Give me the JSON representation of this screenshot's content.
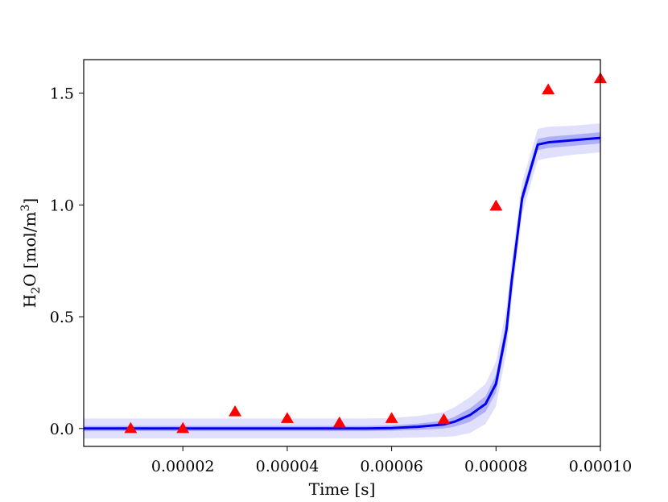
{
  "chart_data": {
    "type": "line",
    "title": "",
    "xlabel": "Time [s]",
    "ylabel": "H2O [mol/m3]",
    "ylabel_parts": {
      "species_main": "H",
      "species_sub": "2",
      "species_tail": "O",
      "unit_main": "[mol/m",
      "unit_sup": "3",
      "unit_tail": "]"
    },
    "xlim": [
      1e-06,
      0.0001
    ],
    "ylim": [
      -0.08,
      1.65
    ],
    "x_ticks": [
      2e-05,
      4e-05,
      6e-05,
      8e-05,
      0.0001
    ],
    "x_tick_labels": [
      "0.00002",
      "0.00004",
      "0.00006",
      "0.00008",
      "0.00010"
    ],
    "y_ticks": [
      0.0,
      0.5,
      1.0,
      1.5
    ],
    "y_tick_labels": [
      "0.0",
      "0.5",
      "1.0",
      "1.5"
    ],
    "grid": false,
    "series": [
      {
        "kind": "line-with-bands",
        "color": "#0000ee",
        "x": [
          1e-06,
          5e-06,
          1e-05,
          1.5e-05,
          2e-05,
          2.5e-05,
          3e-05,
          3.5e-05,
          4e-05,
          4.5e-05,
          5e-05,
          5.5e-05,
          6e-05,
          6.5e-05,
          7e-05,
          7.2e-05,
          7.5e-05,
          7.8e-05,
          8e-05,
          8.2e-05,
          8.3e-05,
          8.5e-05,
          8.8e-05,
          9e-05,
          9.5e-05,
          0.0001
        ],
        "values": [
          0.0,
          0.0,
          0.0,
          0.0,
          0.0,
          0.0,
          0.0,
          0.0,
          0.0,
          0.0,
          0.0,
          0.0,
          0.002,
          0.008,
          0.018,
          0.03,
          0.06,
          0.11,
          0.2,
          0.44,
          0.66,
          1.03,
          1.27,
          1.28,
          1.29,
          1.3
        ],
        "inner_band_halfwidth": [
          0.012,
          0.012,
          0.012,
          0.012,
          0.012,
          0.012,
          0.012,
          0.012,
          0.012,
          0.012,
          0.012,
          0.012,
          0.012,
          0.014,
          0.018,
          0.022,
          0.03,
          0.035,
          0.04,
          0.04,
          0.04,
          0.03,
          0.025,
          0.025,
          0.025,
          0.025
        ],
        "outer_band_halfwidth": [
          0.045,
          0.045,
          0.045,
          0.045,
          0.045,
          0.045,
          0.045,
          0.045,
          0.045,
          0.045,
          0.045,
          0.045,
          0.045,
          0.048,
          0.055,
          0.065,
          0.08,
          0.09,
          0.1,
          0.1,
          0.09,
          0.07,
          0.07,
          0.07,
          0.065,
          0.065
        ]
      },
      {
        "kind": "scatter",
        "marker": "triangle",
        "color": "#ff0000",
        "x": [
          1e-05,
          2e-05,
          3e-05,
          4e-05,
          5e-05,
          6e-05,
          7e-05,
          8e-05,
          9e-05,
          0.0001
        ],
        "values": [
          0.0,
          0.0,
          0.075,
          0.045,
          0.025,
          0.045,
          0.04,
          0.995,
          1.515,
          1.565
        ]
      }
    ]
  }
}
